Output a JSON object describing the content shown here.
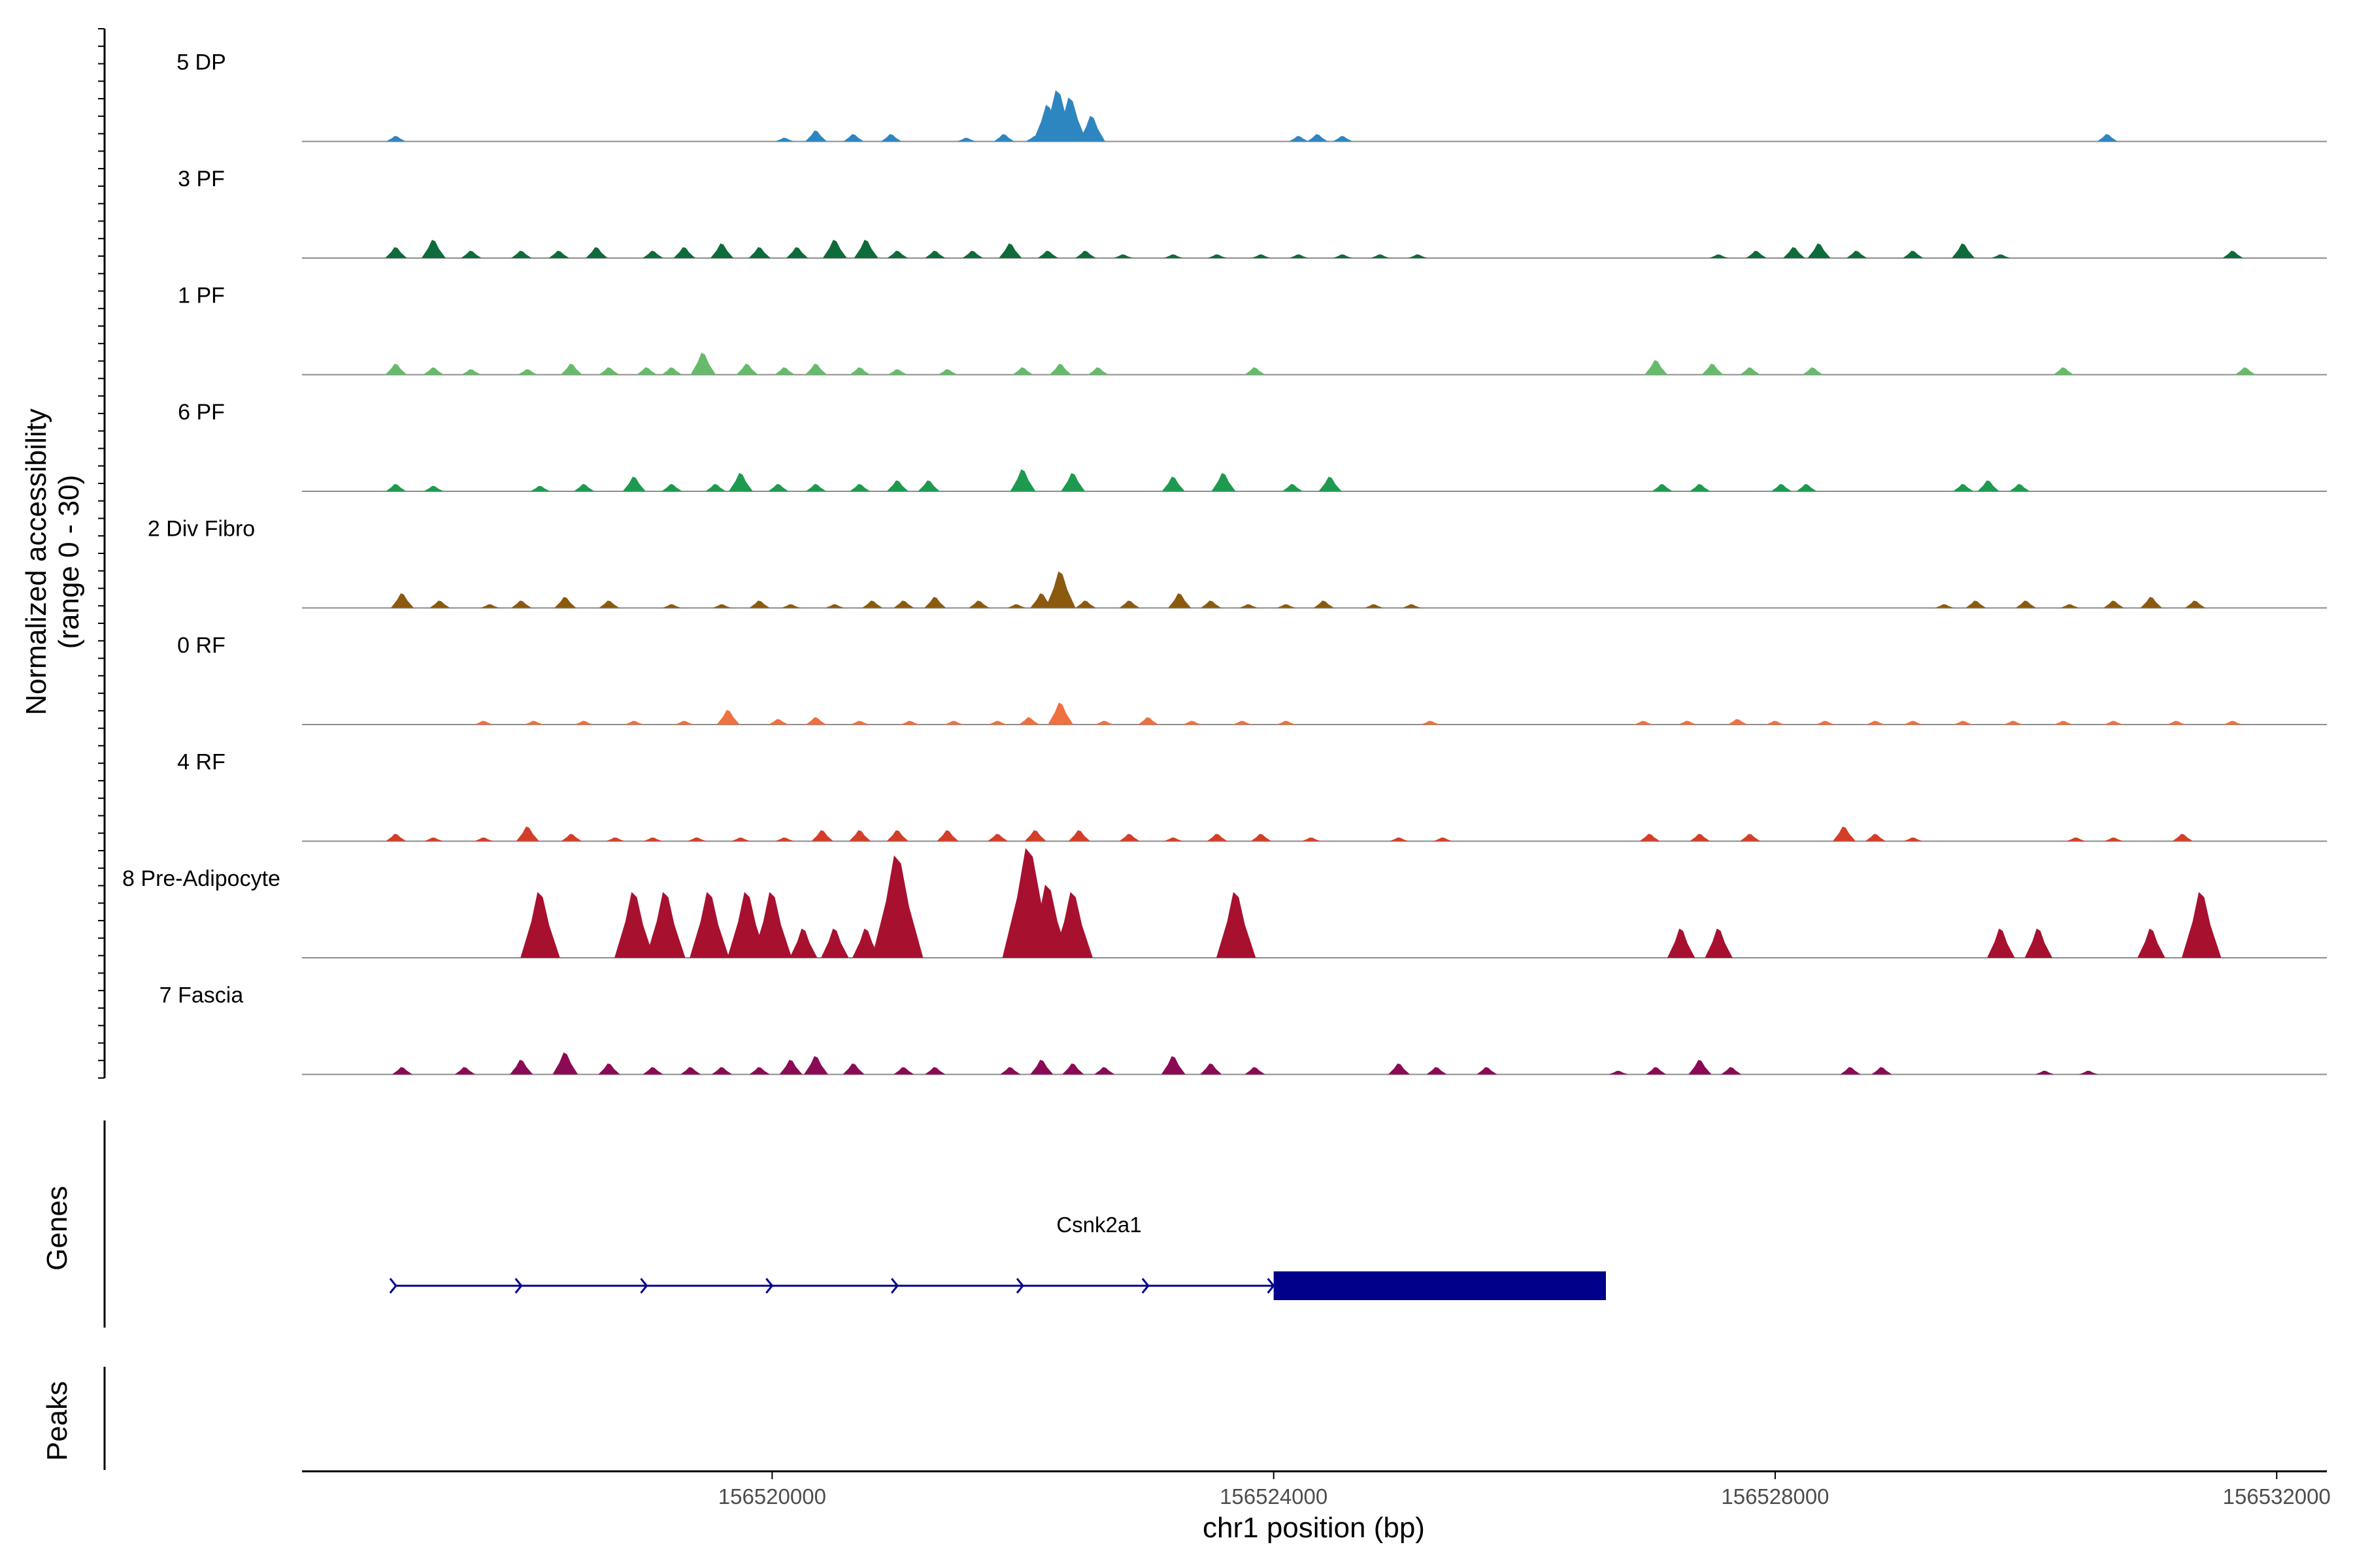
{
  "chart_data": {
    "type": "area",
    "title": "",
    "xlabel": "chr1 position (bp)",
    "ylabel_line1": "Normalized accessibility",
    "ylabel_line2": "(range 0 - 30)",
    "ylim": [
      0,
      30
    ],
    "xlim": [
      156516250,
      156532400
    ],
    "x_ticks": [
      156520000,
      156524000,
      156528000,
      156532000
    ],
    "x_tick_labels": [
      "156520000",
      "156524000",
      "156528000",
      "156532000"
    ],
    "series": [
      {
        "name": "5 DP",
        "color": "#2E86C1",
        "peaks": [
          [
            156517000,
            1.5
          ],
          [
            156520100,
            1
          ],
          [
            156520350,
            3
          ],
          [
            156520650,
            2
          ],
          [
            156520950,
            2
          ],
          [
            156521550,
            1
          ],
          [
            156521850,
            2
          ],
          [
            156522100,
            1.5
          ],
          [
            156522200,
            10
          ],
          [
            156522280,
            14
          ],
          [
            156522380,
            12
          ],
          [
            156522550,
            7
          ],
          [
            156524200,
            1.5
          ],
          [
            156524350,
            2
          ],
          [
            156524550,
            1.5
          ],
          [
            156530650,
            2
          ]
        ]
      },
      {
        "name": "3 PF",
        "color": "#0E6B3A",
        "peaks": [
          [
            156517000,
            3
          ],
          [
            156517300,
            5
          ],
          [
            156517600,
            2
          ],
          [
            156518000,
            2
          ],
          [
            156518300,
            2
          ],
          [
            156518600,
            3
          ],
          [
            156519050,
            2
          ],
          [
            156519300,
            3
          ],
          [
            156519600,
            4
          ],
          [
            156519900,
            3
          ],
          [
            156520200,
            3
          ],
          [
            156520500,
            5
          ],
          [
            156520750,
            5
          ],
          [
            156521000,
            2
          ],
          [
            156521300,
            2
          ],
          [
            156521600,
            2
          ],
          [
            156521900,
            4
          ],
          [
            156522200,
            2
          ],
          [
            156522500,
            2
          ],
          [
            156522800,
            1
          ],
          [
            156523200,
            1
          ],
          [
            156523550,
            1
          ],
          [
            156523900,
            1
          ],
          [
            156524200,
            1
          ],
          [
            156524550,
            1
          ],
          [
            156524850,
            1
          ],
          [
            156525150,
            1
          ],
          [
            156527550,
            1
          ],
          [
            156527850,
            2
          ],
          [
            156528150,
            3
          ],
          [
            156528350,
            4
          ],
          [
            156528650,
            2
          ],
          [
            156529100,
            2
          ],
          [
            156529500,
            4
          ],
          [
            156529800,
            1
          ],
          [
            156531650,
            2
          ]
        ]
      },
      {
        "name": "1 PF",
        "color": "#66BB6A",
        "peaks": [
          [
            156517000,
            3
          ],
          [
            156517300,
            2
          ],
          [
            156517600,
            1.5
          ],
          [
            156518050,
            1.5
          ],
          [
            156518400,
            3
          ],
          [
            156518700,
            2
          ],
          [
            156519000,
            2
          ],
          [
            156519200,
            2
          ],
          [
            156519450,
            6
          ],
          [
            156519800,
            3
          ],
          [
            156520100,
            2
          ],
          [
            156520350,
            3
          ],
          [
            156520700,
            2
          ],
          [
            156521000,
            1.5
          ],
          [
            156521400,
            1.5
          ],
          [
            156522000,
            2
          ],
          [
            156522300,
            3
          ],
          [
            156522600,
            2
          ],
          [
            156523850,
            2
          ],
          [
            156527050,
            4
          ],
          [
            156527500,
            3
          ],
          [
            156527800,
            2
          ],
          [
            156528300,
            2
          ],
          [
            156530300,
            2
          ],
          [
            156531750,
            2
          ]
        ]
      },
      {
        "name": "6 PF",
        "color": "#1E9A50",
        "peaks": [
          [
            156517000,
            2
          ],
          [
            156517300,
            1.5
          ],
          [
            156518150,
            1.5
          ],
          [
            156518500,
            2
          ],
          [
            156518900,
            4
          ],
          [
            156519200,
            2
          ],
          [
            156519550,
            2
          ],
          [
            156519750,
            5
          ],
          [
            156520050,
            2
          ],
          [
            156520350,
            2
          ],
          [
            156520700,
            2
          ],
          [
            156521000,
            3
          ],
          [
            156521250,
            3
          ],
          [
            156522000,
            6
          ],
          [
            156522400,
            5
          ],
          [
            156523200,
            4
          ],
          [
            156523600,
            5
          ],
          [
            156524150,
            2
          ],
          [
            156524450,
            4
          ],
          [
            156527100,
            2
          ],
          [
            156527400,
            2
          ],
          [
            156528050,
            2
          ],
          [
            156528250,
            2
          ],
          [
            156529500,
            2
          ],
          [
            156529700,
            3
          ],
          [
            156529950,
            2
          ]
        ]
      },
      {
        "name": "2 Div Fibro",
        "color": "#8B5A0F",
        "peaks": [
          [
            156517050,
            4
          ],
          [
            156517350,
            2
          ],
          [
            156517750,
            1
          ],
          [
            156518000,
            2
          ],
          [
            156518350,
            3
          ],
          [
            156518700,
            2
          ],
          [
            156519200,
            1
          ],
          [
            156519600,
            1
          ],
          [
            156519900,
            2
          ],
          [
            156520150,
            1
          ],
          [
            156520500,
            1
          ],
          [
            156520800,
            2
          ],
          [
            156521050,
            2
          ],
          [
            156521300,
            3
          ],
          [
            156521650,
            2
          ],
          [
            156521950,
            1
          ],
          [
            156522150,
            4
          ],
          [
            156522300,
            10
          ],
          [
            156522500,
            2
          ],
          [
            156522850,
            2
          ],
          [
            156523250,
            4
          ],
          [
            156523500,
            2
          ],
          [
            156523800,
            1
          ],
          [
            156524100,
            1
          ],
          [
            156524400,
            2
          ],
          [
            156524800,
            1
          ],
          [
            156525100,
            1
          ],
          [
            156529350,
            1
          ],
          [
            156529600,
            2
          ],
          [
            156530000,
            2
          ],
          [
            156530350,
            1
          ],
          [
            156530700,
            2
          ],
          [
            156531000,
            3
          ],
          [
            156531350,
            2
          ]
        ]
      },
      {
        "name": "0 RF",
        "color": "#F07040",
        "peaks": [
          [
            156517700,
            1
          ],
          [
            156518100,
            1
          ],
          [
            156518500,
            1
          ],
          [
            156518900,
            1
          ],
          [
            156519300,
            1
          ],
          [
            156519650,
            4
          ],
          [
            156520050,
            1.5
          ],
          [
            156520350,
            2
          ],
          [
            156520700,
            1
          ],
          [
            156521100,
            1
          ],
          [
            156521450,
            1
          ],
          [
            156521800,
            1
          ],
          [
            156522050,
            2
          ],
          [
            156522300,
            6
          ],
          [
            156522650,
            1
          ],
          [
            156523000,
            2
          ],
          [
            156523350,
            1
          ],
          [
            156523750,
            1
          ],
          [
            156524100,
            1
          ],
          [
            156525250,
            1
          ],
          [
            156526950,
            1
          ],
          [
            156527300,
            1
          ],
          [
            156527700,
            1.5
          ],
          [
            156528000,
            1
          ],
          [
            156528400,
            1
          ],
          [
            156528800,
            1
          ],
          [
            156529100,
            1
          ],
          [
            156529500,
            1
          ],
          [
            156529900,
            1
          ],
          [
            156530300,
            1
          ],
          [
            156530700,
            1
          ],
          [
            156531200,
            1
          ],
          [
            156531650,
            1
          ]
        ]
      },
      {
        "name": "4 RF",
        "color": "#D33E28",
        "peaks": [
          [
            156517000,
            2
          ],
          [
            156517300,
            1
          ],
          [
            156517700,
            1
          ],
          [
            156518050,
            4
          ],
          [
            156518400,
            2
          ],
          [
            156518750,
            1
          ],
          [
            156519050,
            1
          ],
          [
            156519400,
            1
          ],
          [
            156519750,
            1
          ],
          [
            156520100,
            1
          ],
          [
            156520400,
            3
          ],
          [
            156520700,
            3
          ],
          [
            156521000,
            3
          ],
          [
            156521400,
            3
          ],
          [
            156521800,
            2
          ],
          [
            156522100,
            3
          ],
          [
            156522450,
            3
          ],
          [
            156522850,
            2
          ],
          [
            156523200,
            1
          ],
          [
            156523550,
            2
          ],
          [
            156523900,
            2
          ],
          [
            156524300,
            1
          ],
          [
            156525000,
            1
          ],
          [
            156525350,
            1
          ],
          [
            156527000,
            2
          ],
          [
            156527400,
            2
          ],
          [
            156527800,
            2
          ],
          [
            156528550,
            4
          ],
          [
            156528800,
            2
          ],
          [
            156529100,
            1
          ],
          [
            156530400,
            1
          ],
          [
            156530700,
            1
          ],
          [
            156531250,
            2
          ]
        ]
      },
      {
        "name": "8 Pre-Adipocyte",
        "color": "#A8102F",
        "peaks": [
          [
            156518150,
            18
          ],
          [
            156518900,
            18
          ],
          [
            156519150,
            18
          ],
          [
            156519500,
            18
          ],
          [
            156519800,
            18
          ],
          [
            156520000,
            18
          ],
          [
            156520250,
            8
          ],
          [
            156520500,
            8
          ],
          [
            156520750,
            8
          ],
          [
            156521000,
            28
          ],
          [
            156522050,
            30
          ],
          [
            156522200,
            20
          ],
          [
            156522400,
            18
          ],
          [
            156523700,
            18
          ],
          [
            156527250,
            8
          ],
          [
            156527550,
            8
          ],
          [
            156529800,
            8
          ],
          [
            156530100,
            8
          ],
          [
            156531000,
            8
          ],
          [
            156531400,
            18
          ]
        ]
      },
      {
        "name": "7 Fascia",
        "color": "#8A0A55",
        "peaks": [
          [
            156517050,
            2
          ],
          [
            156517550,
            2
          ],
          [
            156518000,
            4
          ],
          [
            156518350,
            6
          ],
          [
            156518700,
            3
          ],
          [
            156519050,
            2
          ],
          [
            156519350,
            2
          ],
          [
            156519600,
            2
          ],
          [
            156519900,
            2
          ],
          [
            156520150,
            4
          ],
          [
            156520350,
            5
          ],
          [
            156520650,
            3
          ],
          [
            156521050,
            2
          ],
          [
            156521300,
            2
          ],
          [
            156521900,
            2
          ],
          [
            156522150,
            4
          ],
          [
            156522400,
            3
          ],
          [
            156522650,
            2
          ],
          [
            156523200,
            5
          ],
          [
            156523500,
            3
          ],
          [
            156523850,
            2
          ],
          [
            156525000,
            3
          ],
          [
            156525300,
            2
          ],
          [
            156525700,
            2
          ],
          [
            156526750,
            1
          ],
          [
            156527050,
            2
          ],
          [
            156527400,
            4
          ],
          [
            156527650,
            2
          ],
          [
            156528600,
            2
          ],
          [
            156528850,
            2
          ],
          [
            156530150,
            1
          ],
          [
            156530500,
            1
          ]
        ]
      }
    ],
    "genes": {
      "title": "Genes",
      "name": "Csnk2a1",
      "color": "#00008B",
      "strand": "+",
      "start": 156517000,
      "end": 156526650,
      "cds_start": 156524000,
      "cds_end": 156526650
    },
    "peaks_track": {
      "title": "Peaks",
      "regions": []
    }
  }
}
